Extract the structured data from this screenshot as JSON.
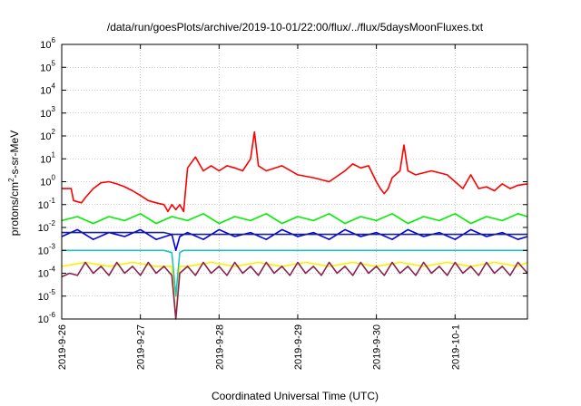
{
  "chart_data": {
    "type": "line",
    "title": "/data/run/goesPlots/archive/2019-10-01/22:00/flux/../flux/5daysMoonFluxes.txt",
    "xlabel": "Coordinated Universal Time (UTC)",
    "ylabel_parts": [
      "protons/cm",
      "2",
      "-s-sr-MeV"
    ],
    "y_scale": "log",
    "ylim": [
      1e-06,
      1000000.0
    ],
    "xlim": [
      0,
      5.92
    ],
    "x_ticks": [
      {
        "pos": 0,
        "label": "2019-9-26"
      },
      {
        "pos": 1,
        "label": "2019-9-27"
      },
      {
        "pos": 2,
        "label": "2019-9-28"
      },
      {
        "pos": 3,
        "label": "2019-9-29"
      },
      {
        "pos": 4,
        "label": "2019-9-30"
      },
      {
        "pos": 5,
        "label": "2019-10-1"
      }
    ],
    "y_ticks": [
      {
        "exp": "6",
        "value": 1000000.0
      },
      {
        "exp": "5",
        "value": 100000.0
      },
      {
        "exp": "4",
        "value": 10000.0
      },
      {
        "exp": "3",
        "value": 1000.0
      },
      {
        "exp": "2",
        "value": 100.0
      },
      {
        "exp": "1",
        "value": 10.0
      },
      {
        "exp": "0",
        "value": 1
      },
      {
        "exp": "-1",
        "value": 0.1
      },
      {
        "exp": "-2",
        "value": 0.01
      },
      {
        "exp": "-3",
        "value": 0.001
      },
      {
        "exp": "-4",
        "value": 0.0001
      },
      {
        "exp": "-5",
        "value": 1e-05
      },
      {
        "exp": "-6",
        "value": 1e-06
      }
    ],
    "grid": true,
    "series": [
      {
        "color": "#ff0000",
        "x": [
          0,
          0.12,
          0.15,
          0.25,
          0.3,
          0.4,
          0.5,
          0.6,
          0.7,
          0.8,
          0.9,
          1.0,
          1.1,
          1.2,
          1.3,
          1.35,
          1.4,
          1.45,
          1.5,
          1.55,
          1.6,
          1.7,
          1.75,
          1.8,
          1.9,
          2.0,
          2.1,
          2.2,
          2.3,
          2.4,
          2.45,
          2.5,
          2.6,
          2.8,
          3.0,
          3.2,
          3.4,
          3.6,
          3.7,
          3.8,
          3.9,
          4.0,
          4.05,
          4.1,
          4.15,
          4.2,
          4.3,
          4.35,
          4.4,
          4.5,
          4.7,
          4.9,
          5.0,
          5.1,
          5.2,
          5.3,
          5.4,
          5.5,
          5.6,
          5.7,
          5.8,
          5.92
        ],
        "y": [
          0.5,
          0.5,
          0.15,
          0.12,
          0.2,
          0.5,
          0.9,
          1.0,
          0.8,
          0.6,
          0.4,
          0.25,
          0.15,
          0.12,
          0.1,
          0.05,
          0.1,
          0.06,
          0.1,
          0.05,
          4,
          12,
          6,
          3,
          5,
          3,
          5,
          4,
          3,
          10,
          150,
          5,
          3,
          5,
          2,
          1.5,
          1,
          3,
          6,
          4,
          5,
          1,
          0.5,
          0.3,
          0.5,
          1.5,
          3,
          40,
          3,
          2,
          3,
          2,
          1,
          0.5,
          2,
          0.5,
          0.6,
          0.4,
          0.8,
          0.5,
          0.7,
          0.8
        ]
      },
      {
        "color": "#00ee00",
        "x": [
          0,
          0.2,
          0.4,
          0.6,
          0.8,
          1.0,
          1.2,
          1.4,
          1.6,
          1.8,
          2.0,
          2.2,
          2.4,
          2.6,
          2.8,
          3.0,
          3.2,
          3.4,
          3.6,
          3.8,
          4.0,
          4.2,
          4.4,
          4.6,
          4.8,
          5.0,
          5.2,
          5.4,
          5.6,
          5.8,
          5.92
        ],
        "y": [
          0.02,
          0.03,
          0.015,
          0.03,
          0.02,
          0.04,
          0.015,
          0.03,
          0.02,
          0.04,
          0.015,
          0.03,
          0.02,
          0.04,
          0.015,
          0.03,
          0.02,
          0.04,
          0.015,
          0.03,
          0.02,
          0.04,
          0.015,
          0.03,
          0.02,
          0.04,
          0.015,
          0.03,
          0.02,
          0.04,
          0.03
        ]
      },
      {
        "color": "#0000ee",
        "x": [
          0,
          0.2,
          0.4,
          0.6,
          0.8,
          1.0,
          1.2,
          1.4,
          1.45,
          1.5,
          1.6,
          1.8,
          2.0,
          2.2,
          2.4,
          2.6,
          2.8,
          3.0,
          3.2,
          3.4,
          3.6,
          3.8,
          4.0,
          4.2,
          4.4,
          4.6,
          4.8,
          5.0,
          5.2,
          5.4,
          5.6,
          5.8,
          5.92
        ],
        "y": [
          0.004,
          0.008,
          0.003,
          0.006,
          0.004,
          0.008,
          0.003,
          0.005,
          0.001,
          0.004,
          0.006,
          0.003,
          0.008,
          0.004,
          0.006,
          0.003,
          0.008,
          0.004,
          0.006,
          0.003,
          0.008,
          0.004,
          0.006,
          0.003,
          0.008,
          0.004,
          0.006,
          0.003,
          0.008,
          0.004,
          0.006,
          0.003,
          0.004
        ]
      },
      {
        "color": "#1a237e",
        "x": [
          0,
          1.3,
          1.4,
          1.5,
          2.0,
          2.5,
          3.0,
          3.5,
          4.0,
          4.5,
          5.0,
          5.5,
          5.92
        ],
        "y": [
          0.006,
          0.006,
          0.005,
          0.005,
          0.005,
          0.005,
          0.005,
          0.005,
          0.005,
          0.005,
          0.005,
          0.005,
          0.005
        ]
      },
      {
        "color": "#20c0c0",
        "x": [
          0,
          0.5,
          1.0,
          1.3,
          1.4,
          1.45,
          1.5,
          1.55,
          1.6,
          2.0,
          2.5,
          3.0,
          3.5,
          4.0,
          4.5,
          5.0,
          5.5,
          5.92
        ],
        "y": [
          0.001,
          0.001,
          0.001,
          0.001,
          0.0008,
          1e-05,
          0.0008,
          0.001,
          0.001,
          0.001,
          0.001,
          0.001,
          0.001,
          0.001,
          0.001,
          0.001,
          0.001,
          0.001
        ]
      },
      {
        "color": "#ffee00",
        "x": [
          0,
          0.3,
          0.6,
          0.9,
          1.2,
          1.4,
          1.45,
          1.5,
          1.6,
          1.9,
          2.2,
          2.5,
          2.8,
          3.1,
          3.4,
          3.7,
          4.0,
          4.3,
          4.6,
          4.9,
          5.2,
          5.5,
          5.8,
          5.92
        ],
        "y": [
          0.0002,
          0.0003,
          0.0002,
          0.0003,
          0.0002,
          0.0002,
          1e-06,
          0.0002,
          0.0002,
          0.0003,
          0.0002,
          0.0003,
          0.0002,
          0.0003,
          0.0002,
          0.0003,
          0.0002,
          0.0003,
          0.0002,
          0.0003,
          0.0002,
          0.0003,
          0.0002,
          0.0003
        ]
      },
      {
        "color": "#8b2252",
        "x": [
          0,
          0.1,
          0.2,
          0.3,
          0.4,
          0.5,
          0.6,
          0.7,
          0.8,
          0.9,
          1.0,
          1.1,
          1.2,
          1.3,
          1.4,
          1.45,
          1.5,
          1.6,
          1.7,
          1.8,
          1.9,
          2.0,
          2.1,
          2.2,
          2.3,
          2.4,
          2.5,
          2.6,
          2.7,
          2.8,
          2.9,
          3.0,
          3.1,
          3.2,
          3.3,
          3.4,
          3.5,
          3.6,
          3.7,
          3.8,
          3.9,
          4.0,
          4.1,
          4.2,
          4.3,
          4.4,
          4.5,
          4.6,
          4.7,
          4.8,
          4.9,
          5.0,
          5.1,
          5.2,
          5.3,
          5.4,
          5.5,
          5.6,
          5.7,
          5.8,
          5.92
        ],
        "y": [
          7e-05,
          0.0001,
          8e-05,
          0.0003,
          0.0001,
          0.0002,
          8e-05,
          0.0003,
          0.0001,
          0.0002,
          8e-05,
          0.0003,
          0.0001,
          0.0002,
          8e-05,
          1e-06,
          0.0001,
          0.0002,
          8e-05,
          0.0003,
          0.0001,
          0.0002,
          8e-05,
          0.0003,
          0.0001,
          0.0002,
          8e-05,
          0.0003,
          0.0001,
          0.0002,
          8e-05,
          0.0003,
          0.0001,
          0.0002,
          8e-05,
          0.0003,
          0.0001,
          0.0002,
          8e-05,
          0.0003,
          0.0001,
          0.0002,
          8e-05,
          0.0003,
          0.0001,
          0.0002,
          8e-05,
          0.0003,
          0.0001,
          0.0002,
          8e-05,
          0.0003,
          0.0001,
          0.0002,
          8e-05,
          0.0003,
          0.0001,
          0.0002,
          8e-05,
          0.0003,
          0.0001
        ]
      }
    ]
  }
}
